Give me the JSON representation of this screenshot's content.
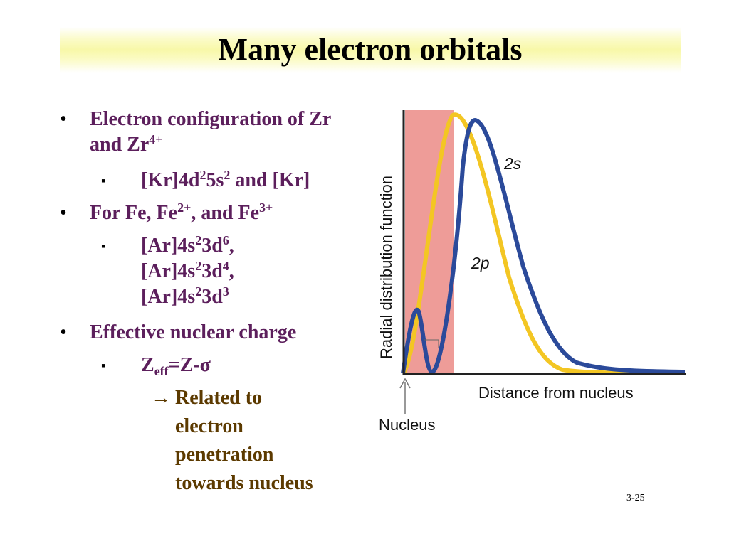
{
  "slide": {
    "title": "Many electron orbitals",
    "page_number": "3-25"
  },
  "bullets": {
    "zr": {
      "marker": "•",
      "text": "Electron configuration of Zr and Zr",
      "sup": "4+"
    },
    "zr_config": {
      "marker": "▪",
      "p1": "[Kr]4d",
      "s1": "2",
      "p2": "5s",
      "s2": "2",
      "p3": " and [Kr]"
    },
    "fe": {
      "marker": "•",
      "t1": "For Fe, Fe",
      "s1": "2+",
      "t2": ", and Fe",
      "s2": "3+"
    },
    "fe_config": {
      "marker": "▪",
      "lines": [
        {
          "a": "[Ar]4s",
          "b": "2",
          "c": "3d",
          "d": "6",
          "e": ","
        },
        {
          "a": "[Ar]4s",
          "b": "2",
          "c": "3d",
          "d": "4",
          "e": ","
        },
        {
          "a": "[Ar]4s",
          "b": "2",
          "c": "3d",
          "d": "3",
          "e": ""
        }
      ]
    },
    "zeff": {
      "marker": "•",
      "text": "Effective nuclear charge"
    },
    "zeff_formula": {
      "marker": "▪",
      "z": "Z",
      "sub": "eff",
      "rest": "=Z-σ"
    },
    "related": {
      "marker": "→",
      "lines": [
        "Related to",
        "electron",
        "penetration",
        "towards nucleus"
      ]
    }
  },
  "figure": {
    "y_label": "Radial distribution function",
    "x_label": "Distance from nucleus",
    "nucleus_label": "Nucleus",
    "curve_labels": {
      "s": "2s",
      "p": "2p"
    },
    "colors": {
      "s": "#2b4a9a",
      "p": "#f3c623",
      "shade": "#ee9c98",
      "axis": "#222222"
    }
  }
}
